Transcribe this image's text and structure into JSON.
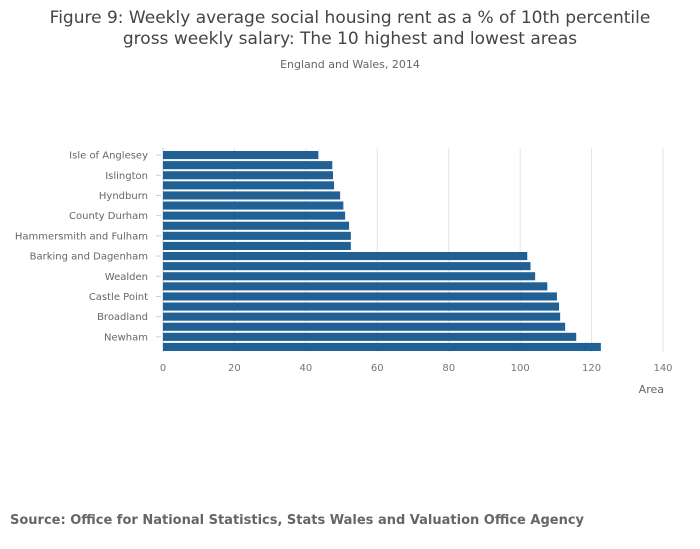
{
  "chart_data": {
    "type": "bar",
    "orientation": "horizontal",
    "title": "Figure 9: Weekly average social housing rent as a % of 10th percentile gross weekly salary: The 10 highest and lowest areas",
    "title_lines": [
      "Figure 9: Weekly average social housing rent as a % of 10th percentile",
      "gross weekly salary: The 10 highest and lowest areas"
    ],
    "subtitle": "England and Wales, 2014",
    "xlabel": "Area",
    "ylabel": "",
    "xlim": [
      0,
      140
    ],
    "xticks": [
      0,
      20,
      40,
      60,
      80,
      100,
      120,
      140
    ],
    "grid": true,
    "categories": [
      "Isle of Anglesey",
      "",
      "Islington",
      "",
      "Hyndburn",
      "",
      "County Durham",
      "",
      "Hammersmith and Fulham",
      "",
      "Barking and Dagenham",
      "",
      "Wealden",
      "",
      "Castle Point",
      "",
      "Broadland",
      "",
      "Newham",
      ""
    ],
    "values": [
      43.5,
      47.4,
      47.6,
      47.9,
      49.6,
      50.5,
      51.0,
      52.1,
      52.6,
      52.6,
      102.0,
      102.9,
      104.2,
      107.6,
      110.3,
      110.9,
      111.2,
      112.6,
      115.7,
      122.6
    ],
    "bar_color": "#206095"
  },
  "source": "Source: Office for National Statistics, Stats Wales and Valuation Office Agency"
}
